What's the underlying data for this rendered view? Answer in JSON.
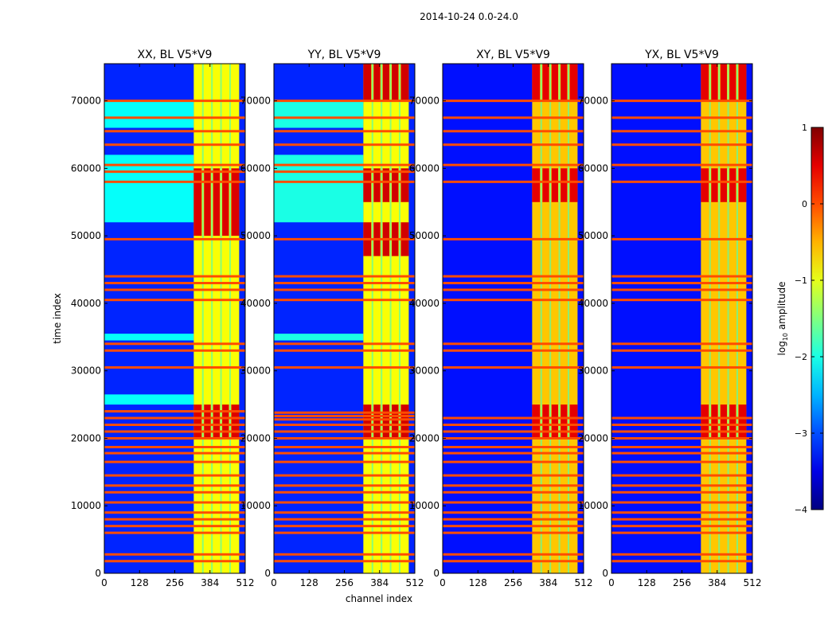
{
  "figure": {
    "suptitle": "2014-10-24 0.0-24.0",
    "xlabel": "channel index",
    "ylabel": "time index",
    "colorbar_label_prefix": "log",
    "colorbar_label_sub": "10",
    "colorbar_label_suffix": " amplitude"
  },
  "chart_data": {
    "type": "heatmap",
    "title": "2014-10-24 0.0-24.0",
    "xlabel": "channel index",
    "ylabel": "time index",
    "xlim": [
      0,
      512
    ],
    "ylim": [
      0,
      75500
    ],
    "x_ticks": [
      0,
      128,
      256,
      384,
      512
    ],
    "x_tick_labels": [
      "0",
      "128",
      "256",
      "384",
      "512"
    ],
    "y_ticks": [
      0,
      10000,
      20000,
      30000,
      40000,
      50000,
      60000,
      70000
    ],
    "y_tick_labels": [
      "0",
      "10000",
      "20000",
      "30000",
      "40000",
      "50000",
      "60000",
      "70000"
    ],
    "colorbar": {
      "label": "log10 amplitude",
      "range": [
        -4,
        1
      ],
      "ticks": [
        1,
        0,
        -1,
        -2,
        -3,
        -4
      ],
      "tick_labels": [
        "1",
        "0",
        "−1",
        "−2",
        "−3",
        "−4"
      ],
      "colormap": "jet"
    },
    "panels": [
      {
        "title": "XX, BL V5*V9",
        "background_level": -3.2,
        "band_channels": [
          325,
          490
        ],
        "band_level": -0.9,
        "strong_segments": [
          [
            50000,
            60000
          ],
          [
            20000,
            25000
          ]
        ],
        "strong_level": 0.55,
        "cyan_region": {
          "channels": [
            0,
            325
          ],
          "rows": [
            [
              52000,
              62000
            ],
            [
              66000,
              70000
            ],
            [
              25000,
              26500
            ],
            [
              34500,
              35500
            ]
          ],
          "level": -2.1
        },
        "rfi_rows": [
          1800,
          2800,
          6000,
          7000,
          8000,
          9000,
          10500,
          12000,
          13000,
          14500,
          16500,
          17800,
          18700,
          20000,
          21000,
          22000,
          23000,
          24000,
          30500,
          33000,
          34000,
          40500,
          42000,
          43000,
          44000,
          49500,
          58000,
          59500,
          60500,
          63500,
          65500,
          67500,
          70000
        ]
      },
      {
        "title": "YY, BL V5*V9",
        "background_level": -3.2,
        "band_channels": [
          325,
          490
        ],
        "band_level": -0.9,
        "strong_segments": [
          [
            55000,
            60000
          ],
          [
            47000,
            52000
          ],
          [
            70000,
            75500
          ],
          [
            20000,
            25000
          ]
        ],
        "strong_level": 0.6,
        "cyan_region": {
          "channels": [
            0,
            325
          ],
          "rows": [
            [
              52000,
              62000
            ],
            [
              66000,
              70000
            ],
            [
              34500,
              35500
            ]
          ],
          "level": -2.0
        },
        "rfi_rows": [
          1800,
          2800,
          6000,
          7000,
          8000,
          9000,
          10500,
          12000,
          13000,
          14500,
          16500,
          17800,
          18700,
          20000,
          21000,
          22000,
          22800,
          23300,
          23800,
          30500,
          33000,
          34000,
          40500,
          42000,
          43000,
          44000,
          49500,
          58000,
          59500,
          60500,
          63500,
          65500,
          67500,
          70000
        ]
      },
      {
        "title": "XY, BL V5*V9",
        "background_level": -3.3,
        "band_channels": [
          325,
          490
        ],
        "band_level": -0.6,
        "strong_segments": [
          [
            55000,
            60000
          ],
          [
            20000,
            25000
          ],
          [
            70000,
            75500
          ]
        ],
        "strong_level": 0.5,
        "cyan_region": {
          "channels": [
            0,
            325
          ],
          "rows": [],
          "level": -2.5
        },
        "rfi_rows": [
          1800,
          2800,
          6000,
          7000,
          8000,
          9000,
          10500,
          12000,
          13000,
          14500,
          16500,
          17800,
          18700,
          20000,
          21000,
          22000,
          23000,
          30500,
          33000,
          34000,
          40500,
          42000,
          43000,
          44000,
          49500,
          58000,
          60500,
          63500,
          65500,
          67500,
          70000
        ]
      },
      {
        "title": "YX, BL V5*V9",
        "background_level": -3.3,
        "band_channels": [
          325,
          490
        ],
        "band_level": -0.6,
        "strong_segments": [
          [
            55000,
            60000
          ],
          [
            20000,
            25000
          ],
          [
            70000,
            75500
          ]
        ],
        "strong_level": 0.5,
        "cyan_region": {
          "channels": [
            0,
            325
          ],
          "rows": [],
          "level": -2.5
        },
        "rfi_rows": [
          1800,
          2800,
          6000,
          7000,
          8000,
          9000,
          10500,
          12000,
          13000,
          14500,
          16500,
          17800,
          18700,
          20000,
          21000,
          22000,
          23000,
          30500,
          33000,
          34000,
          40500,
          42000,
          43000,
          44000,
          49500,
          58000,
          60500,
          63500,
          65500,
          67500,
          70000
        ]
      }
    ]
  }
}
